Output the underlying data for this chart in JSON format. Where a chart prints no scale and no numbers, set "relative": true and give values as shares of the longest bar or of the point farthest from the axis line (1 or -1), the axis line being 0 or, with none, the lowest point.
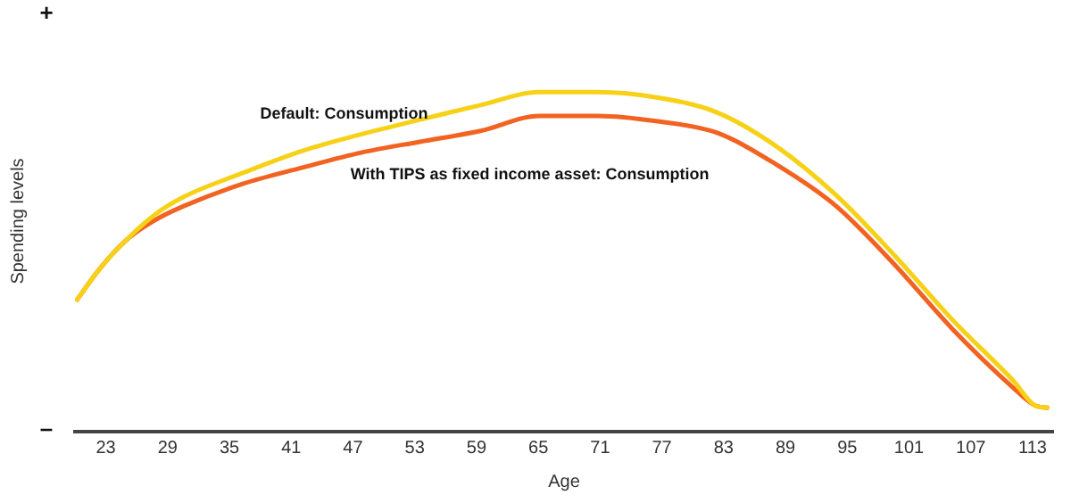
{
  "chart_data": {
    "type": "line",
    "relative": true,
    "xlabel": "Age",
    "ylabel": "Spending levels",
    "xlim": [
      20,
      115
    ],
    "xticks": [
      23,
      29,
      35,
      41,
      47,
      53,
      59,
      65,
      71,
      77,
      83,
      89,
      95,
      101,
      107,
      113
    ],
    "annotations": [
      "+",
      "–"
    ],
    "legend": false,
    "grid": false,
    "marker": "none",
    "line_style": "solid",
    "series": [
      {
        "name": "Default: Consumption",
        "color": "#f7d117",
        "x": [
          20.1,
          22.3,
          24.9,
          27.7,
          30.6,
          36.3,
          42.1,
          47.8,
          53.5,
          59.4,
          65.1,
          70.8,
          76.6,
          82.3,
          88.0,
          93.9,
          99.6,
          105.2,
          111.1,
          113.3,
          114.6
        ],
        "values": [
          0.384,
          0.476,
          0.562,
          0.638,
          0.692,
          0.762,
          0.827,
          0.876,
          0.919,
          0.962,
          1.0,
          1.0,
          0.984,
          0.941,
          0.843,
          0.697,
          0.519,
          0.33,
          0.151,
          0.076,
          0.07
        ]
      },
      {
        "name": "With TIPS as fixed income asset: Consumption",
        "color": "#f26322",
        "x": [
          20.1,
          22.3,
          24.9,
          27.7,
          30.6,
          36.3,
          42.1,
          47.8,
          53.5,
          59.4,
          65.1,
          70.8,
          76.6,
          82.3,
          88.0,
          93.9,
          99.6,
          105.2,
          111.1,
          113.3,
          114.6
        ],
        "values": [
          0.384,
          0.476,
          0.562,
          0.622,
          0.665,
          0.73,
          0.778,
          0.822,
          0.854,
          0.886,
          0.93,
          0.93,
          0.914,
          0.881,
          0.789,
          0.665,
          0.492,
          0.303,
          0.13,
          0.076,
          0.07
        ]
      }
    ]
  }
}
